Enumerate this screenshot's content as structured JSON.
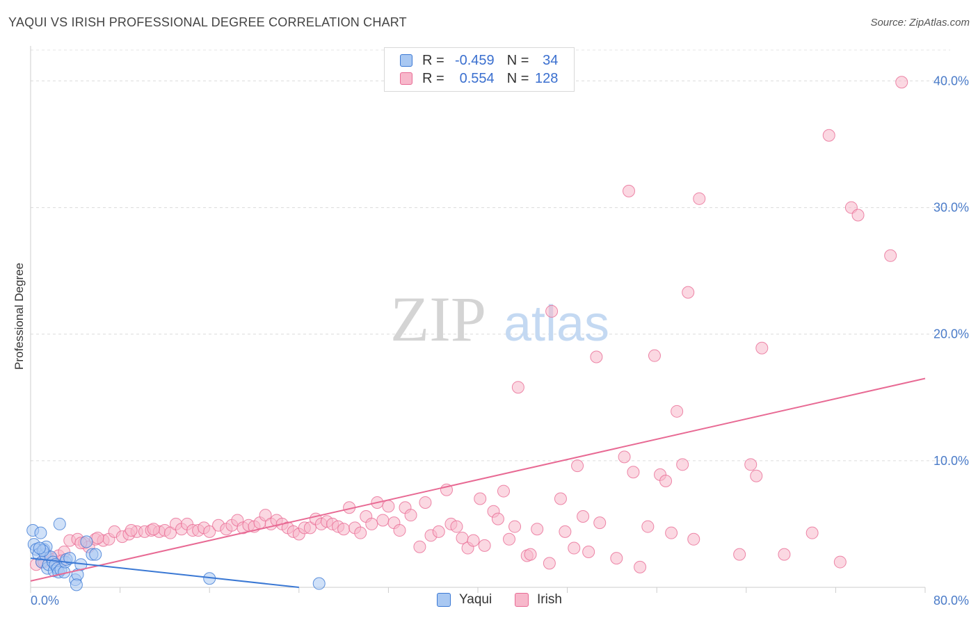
{
  "header": {
    "title": "YAQUI VS IRISH PROFESSIONAL DEGREE CORRELATION CHART",
    "source": "Source: ZipAtlas.com"
  },
  "watermark": {
    "zip": "ZIP",
    "atlas": "atlas"
  },
  "legend": {
    "rows": [
      {
        "r_label": "R =",
        "r_value": "-0.459",
        "n_label": "N =",
        "n_value": "34",
        "color": "#a9c8f2"
      },
      {
        "r_label": "R =",
        "r_value": "0.554",
        "n_label": "N =",
        "n_value": "128",
        "color": "#f7b8cb"
      }
    ]
  },
  "bottom_legend": {
    "items": [
      {
        "label": "Yaqui",
        "color": "#a9c8f2"
      },
      {
        "label": "Irish",
        "color": "#f7b8cb"
      }
    ]
  },
  "chart_data": {
    "type": "scatter",
    "title": "YAQUI VS IRISH PROFESSIONAL DEGREE CORRELATION CHART",
    "xlabel": "",
    "ylabel": "Professional Degree",
    "xlim": [
      0,
      80
    ],
    "ylim": [
      0,
      42
    ],
    "x_tick_labels": [
      {
        "value": 0,
        "label": "0.0%"
      },
      {
        "value": 80,
        "label": "80.0%"
      }
    ],
    "y_tick_labels": [
      {
        "value": 10,
        "label": "10.0%"
      },
      {
        "value": 20,
        "label": "20.0%"
      },
      {
        "value": 30,
        "label": "30.0%"
      },
      {
        "value": 40,
        "label": "40.0%"
      }
    ],
    "grid": true,
    "colors": {
      "yaqui": "#a9c8f2",
      "yaqui_line": "#3a78d4",
      "irish": "#f7b8cb",
      "irish_line": "#e86a94"
    },
    "series": [
      {
        "name": "Yaqui",
        "points": [
          [
            0.2,
            4.5
          ],
          [
            0.3,
            3.4
          ],
          [
            0.5,
            3.0
          ],
          [
            0.7,
            2.6
          ],
          [
            0.9,
            4.3
          ],
          [
            1.0,
            2.0
          ],
          [
            1.2,
            3.0
          ],
          [
            1.3,
            2.6
          ],
          [
            1.4,
            3.2
          ],
          [
            1.5,
            1.5
          ],
          [
            1.6,
            1.8
          ],
          [
            1.8,
            2.4
          ],
          [
            2.0,
            2.0
          ],
          [
            2.1,
            1.3
          ],
          [
            2.2,
            1.8
          ],
          [
            2.4,
            1.5
          ],
          [
            2.5,
            1.2
          ],
          [
            2.6,
            5.0
          ],
          [
            2.7,
            1.4
          ],
          [
            3.0,
            1.2
          ],
          [
            3.1,
            2.0
          ],
          [
            3.2,
            2.2
          ],
          [
            3.5,
            2.3
          ],
          [
            4.0,
            0.6
          ],
          [
            4.2,
            1.0
          ],
          [
            4.5,
            1.8
          ],
          [
            5.0,
            3.6
          ],
          [
            5.5,
            2.6
          ],
          [
            5.8,
            2.6
          ],
          [
            16.0,
            0.7
          ],
          [
            25.8,
            0.3
          ],
          [
            1.1,
            2.9
          ],
          [
            0.8,
            3.1
          ],
          [
            4.1,
            0.2
          ]
        ],
        "trend": {
          "x0": 0,
          "y0": 2.3,
          "x1": 24,
          "y1": 0.0
        }
      },
      {
        "name": "Irish",
        "points": [
          [
            0.5,
            1.8
          ],
          [
            1.0,
            2.0
          ],
          [
            1.5,
            2.5
          ],
          [
            2.0,
            2.2
          ],
          [
            2.5,
            2.5
          ],
          [
            3.0,
            2.8
          ],
          [
            3.5,
            3.7
          ],
          [
            4.2,
            3.8
          ],
          [
            4.8,
            3.5
          ],
          [
            5.2,
            3.2
          ],
          [
            5.8,
            3.8
          ],
          [
            6.5,
            3.7
          ],
          [
            7.0,
            3.8
          ],
          [
            7.5,
            4.4
          ],
          [
            8.2,
            4.0
          ],
          [
            8.8,
            4.2
          ],
          [
            9.5,
            4.4
          ],
          [
            10.2,
            4.4
          ],
          [
            10.8,
            4.5
          ],
          [
            11.5,
            4.4
          ],
          [
            12.0,
            4.5
          ],
          [
            12.5,
            4.3
          ],
          [
            13.0,
            5.0
          ],
          [
            13.5,
            4.6
          ],
          [
            14.0,
            5.0
          ],
          [
            14.5,
            4.5
          ],
          [
            15.0,
            4.5
          ],
          [
            15.5,
            4.7
          ],
          [
            16.0,
            4.4
          ],
          [
            16.8,
            4.9
          ],
          [
            17.5,
            4.6
          ],
          [
            18.0,
            4.9
          ],
          [
            18.5,
            5.3
          ],
          [
            19.0,
            4.7
          ],
          [
            19.5,
            4.9
          ],
          [
            20.0,
            4.8
          ],
          [
            20.5,
            5.1
          ],
          [
            21.0,
            5.7
          ],
          [
            21.5,
            5.0
          ],
          [
            22.0,
            5.3
          ],
          [
            22.5,
            5.0
          ],
          [
            23.0,
            4.7
          ],
          [
            23.5,
            4.4
          ],
          [
            24.0,
            4.2
          ],
          [
            24.5,
            4.7
          ],
          [
            25.0,
            4.7
          ],
          [
            25.5,
            5.4
          ],
          [
            26.0,
            5.0
          ],
          [
            26.5,
            5.2
          ],
          [
            27.0,
            5.0
          ],
          [
            27.5,
            4.8
          ],
          [
            28.0,
            4.6
          ],
          [
            28.5,
            6.3
          ],
          [
            29.0,
            4.7
          ],
          [
            29.5,
            4.3
          ],
          [
            30.0,
            5.6
          ],
          [
            30.5,
            5.0
          ],
          [
            31.0,
            6.7
          ],
          [
            31.5,
            5.3
          ],
          [
            32.0,
            6.4
          ],
          [
            32.5,
            5.1
          ],
          [
            33.0,
            4.5
          ],
          [
            33.5,
            6.3
          ],
          [
            34.0,
            5.7
          ],
          [
            34.8,
            3.2
          ],
          [
            35.3,
            6.7
          ],
          [
            35.8,
            4.1
          ],
          [
            36.5,
            4.4
          ],
          [
            37.2,
            7.7
          ],
          [
            37.6,
            5.0
          ],
          [
            38.1,
            4.8
          ],
          [
            38.6,
            3.9
          ],
          [
            39.1,
            3.1
          ],
          [
            39.6,
            3.7
          ],
          [
            40.2,
            7.0
          ],
          [
            40.6,
            3.3
          ],
          [
            41.4,
            6.0
          ],
          [
            41.8,
            5.4
          ],
          [
            42.3,
            7.6
          ],
          [
            42.8,
            3.8
          ],
          [
            43.3,
            4.8
          ],
          [
            43.6,
            15.8
          ],
          [
            44.4,
            2.5
          ],
          [
            44.7,
            2.6
          ],
          [
            45.3,
            4.6
          ],
          [
            46.4,
            1.9
          ],
          [
            46.6,
            21.8
          ],
          [
            47.4,
            7.0
          ],
          [
            47.8,
            4.4
          ],
          [
            48.6,
            3.1
          ],
          [
            48.9,
            9.6
          ],
          [
            49.4,
            5.6
          ],
          [
            49.9,
            2.8
          ],
          [
            50.6,
            18.2
          ],
          [
            50.9,
            5.1
          ],
          [
            52.4,
            2.3
          ],
          [
            53.1,
            10.3
          ],
          [
            53.5,
            31.3
          ],
          [
            53.9,
            9.1
          ],
          [
            54.5,
            1.6
          ],
          [
            55.2,
            4.8
          ],
          [
            55.8,
            18.3
          ],
          [
            56.3,
            8.9
          ],
          [
            56.8,
            8.4
          ],
          [
            57.3,
            4.3
          ],
          [
            57.8,
            13.9
          ],
          [
            58.3,
            9.7
          ],
          [
            58.8,
            23.3
          ],
          [
            59.3,
            3.8
          ],
          [
            59.8,
            30.7
          ],
          [
            63.4,
            2.6
          ],
          [
            64.4,
            9.7
          ],
          [
            64.9,
            8.8
          ],
          [
            65.4,
            18.9
          ],
          [
            67.4,
            2.6
          ],
          [
            69.9,
            4.3
          ],
          [
            71.4,
            35.7
          ],
          [
            72.4,
            2.0
          ],
          [
            73.4,
            30.0
          ],
          [
            74.0,
            29.4
          ],
          [
            76.9,
            26.2
          ],
          [
            77.9,
            39.9
          ],
          [
            1.2,
            2.0
          ],
          [
            2.8,
            2.1
          ],
          [
            4.5,
            3.5
          ],
          [
            6.0,
            3.9
          ],
          [
            9.0,
            4.5
          ],
          [
            11.0,
            4.6
          ]
        ],
        "trend": {
          "x0": 0,
          "y0": 0.5,
          "x1": 80,
          "y1": 16.5
        }
      }
    ]
  }
}
